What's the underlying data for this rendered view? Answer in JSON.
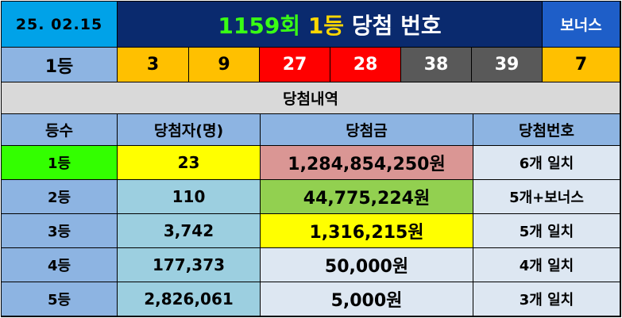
{
  "header": {
    "date": "25. 02.15",
    "title_round": "1159회",
    "title_rank": "1등",
    "title_rest": "당첨 번호",
    "bonus_label": "보너스"
  },
  "numbers_row": {
    "rank_label": "1등",
    "balls": [
      {
        "value": "3",
        "color": "#ffc000"
      },
      {
        "value": "9",
        "color": "#ffc000"
      },
      {
        "value": "27",
        "color": "#ff0000"
      },
      {
        "value": "28",
        "color": "#ff0000"
      },
      {
        "value": "38",
        "color": "#595959"
      },
      {
        "value": "39",
        "color": "#595959"
      }
    ],
    "bonus_ball": {
      "value": "7",
      "color": "#ffc000"
    }
  },
  "subtitle": "당첨내역",
  "table": {
    "headers": [
      "등수",
      "당첨자(명)",
      "당첨금",
      "당첨번호"
    ],
    "rows": [
      {
        "rank": "1등",
        "winners": "23",
        "amount": "1,284,854,250원",
        "match": "6개 일치"
      },
      {
        "rank": "2등",
        "winners": "110",
        "amount": "44,775,224원",
        "match": "5개+보너스"
      },
      {
        "rank": "3등",
        "winners": "3,742",
        "amount": "1,316,215원",
        "match": "5개 일치"
      },
      {
        "rank": "4등",
        "winners": "177,373",
        "amount": "50,000원",
        "match": "4개 일치"
      },
      {
        "rank": "5등",
        "winners": "2,826,061",
        "amount": "5,000원",
        "match": "3개 일치"
      }
    ]
  }
}
